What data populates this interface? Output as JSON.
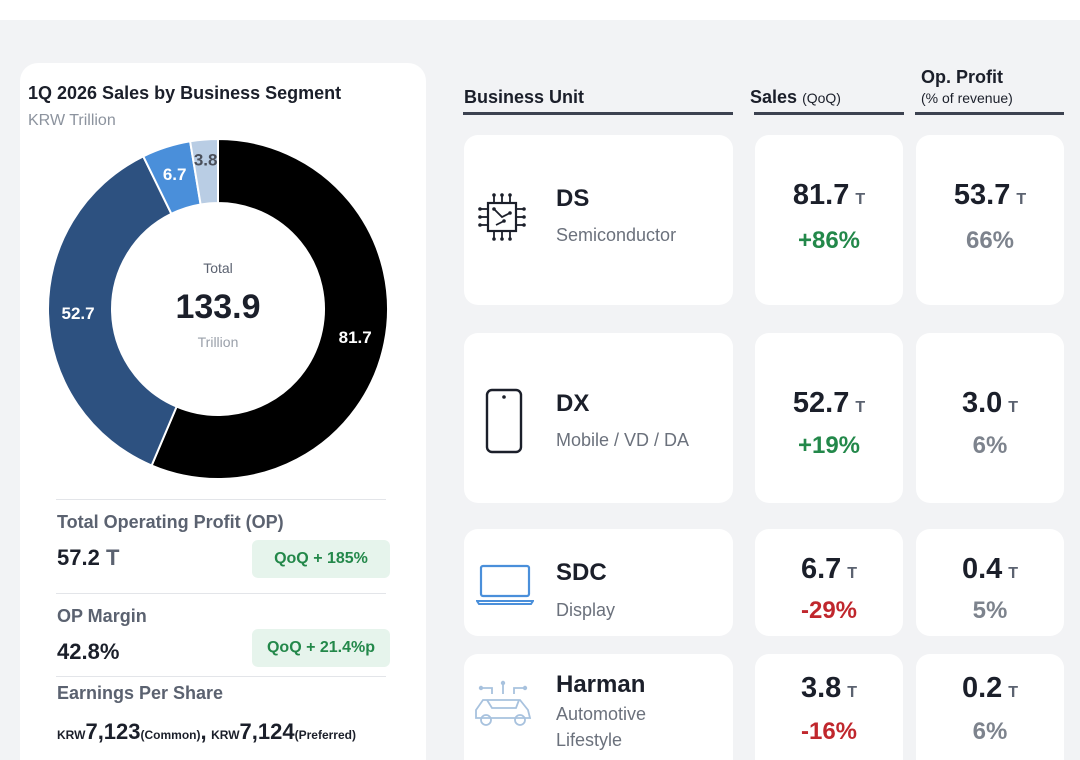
{
  "chart_data": {
    "type": "pie",
    "title": "1Q 2026 Sales by Business Segment",
    "subtitle": "KRW Trillion",
    "center_label": "Total",
    "center_value": "133.9",
    "center_unit": "Trillion",
    "categories": [
      "DS",
      "DX",
      "SDC",
      "Harman"
    ],
    "values": [
      81.7,
      52.7,
      6.7,
      3.8
    ],
    "colors": [
      "#000000",
      "#2d5180",
      "#4a8fda",
      "#b9cde4"
    ]
  },
  "kpis": {
    "op_label": "Total Operating Profit (OP)",
    "op_value": "57.2",
    "op_unit": "T",
    "op_badge": "QoQ  + 185%",
    "margin_label": "OP Margin",
    "margin_value": "42.8%",
    "margin_badge": "QoQ  + 21.4%p",
    "eps_label": "Earnings Per Share",
    "eps_currency": "KRW",
    "eps_common": "7,123",
    "eps_common_tag": "(Common)",
    "eps_sep": ",",
    "eps_preferred": "7,124",
    "eps_preferred_tag": "(Preferred)"
  },
  "table": {
    "head_unit": "Business Unit",
    "head_sales": "Sales",
    "head_sales_sub": "(QoQ)",
    "head_op": "Op. Profit",
    "head_op_sub": "(% of revenue)",
    "rows": [
      {
        "code": "DS",
        "desc": "Semiconductor",
        "icon": "chip-icon",
        "sales": "81.7",
        "sales_unit": "T",
        "qoq": "+86%",
        "op": "53.7",
        "op_unit": "T",
        "margin": "66%"
      },
      {
        "code": "DX",
        "desc": "Mobile / VD / DA",
        "icon": "smartphone-icon",
        "sales": "52.7",
        "sales_unit": "T",
        "qoq": "+19%",
        "op": "3.0",
        "op_unit": "T",
        "margin": "6%"
      },
      {
        "code": "SDC",
        "desc": "Display",
        "icon": "laptop-icon",
        "sales": "6.7",
        "sales_unit": "T",
        "qoq": "-29%",
        "op": "0.4",
        "op_unit": "T",
        "margin": "5%"
      },
      {
        "code": "Harman",
        "desc": "Automotive",
        "desc2": "Lifestyle",
        "icon": "connected-car-icon",
        "sales": "3.8",
        "sales_unit": "T",
        "qoq": "-16%",
        "op": "0.2",
        "op_unit": "T",
        "margin": "6%"
      }
    ]
  }
}
